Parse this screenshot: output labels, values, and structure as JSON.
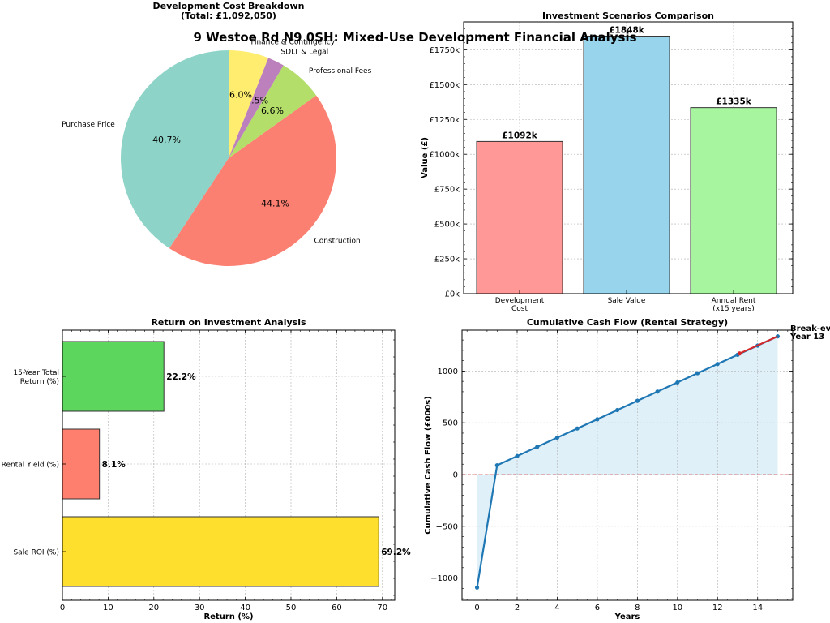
{
  "suptitle": "9 Westoe Rd N9 0SH: Mixed-Use Development Financial Analysis",
  "chart_data": [
    {
      "type": "pie",
      "title": "Development Cost Breakdown",
      "subtitle": "(Total: £1,092,050)",
      "slices": [
        {
          "label": "Purchase Price",
          "value": 40.7,
          "pct": "40.7%",
          "color": "#8dd3c7"
        },
        {
          "label": "Construction",
          "value": 44.1,
          "pct": "44.1%",
          "color": "#fb8072"
        },
        {
          "label": "Professional Fees",
          "value": 6.6,
          "pct": "6.6%",
          "color": "#b3de69"
        },
        {
          "label": "SDLT & Legal",
          "value": 2.5,
          "pct": "2.5%",
          "color": "#bc80bd"
        },
        {
          "label": "Finance & Contingency",
          "value": 6.0,
          "pct": "6.0%",
          "color": "#ffed6f"
        }
      ]
    },
    {
      "type": "bar",
      "title": "Investment Scenarios Comparison",
      "ylabel": "Value (£)",
      "categories": [
        [
          "Development",
          "Cost"
        ],
        [
          "Sale Value"
        ],
        [
          "Annual Rent",
          "(x15 years)"
        ]
      ],
      "values": [
        1092,
        1848,
        1335
      ],
      "value_labels": [
        "£1092k",
        "£1848k",
        "£1335k"
      ],
      "colors": [
        "#ff9896",
        "#98d4ec",
        "#a8f5a0"
      ],
      "ylim": [
        0,
        1950
      ],
      "yticks": [
        0,
        250,
        500,
        750,
        1000,
        1250,
        1500,
        1750
      ],
      "ytick_labels": [
        "£0k",
        "£250k",
        "£500k",
        "£750k",
        "£1000k",
        "£1250k",
        "£1500k",
        "£1750k"
      ],
      "grid": true
    },
    {
      "type": "bar",
      "orientation": "horizontal",
      "title": "Return on Investment Analysis",
      "xlabel": "Return (%)",
      "categories": [
        [
          "Sale ROI (%)"
        ],
        [
          "Rental Yield (%)"
        ],
        [
          "15-Year Total",
          "Return (%)"
        ]
      ],
      "values": [
        69.2,
        8.1,
        22.2
      ],
      "value_labels": [
        "69.2%",
        "8.1%",
        "22.2%"
      ],
      "colors": [
        "#ffdf2e",
        "#ff7f6e",
        "#5cd65c"
      ],
      "xlim": [
        0,
        72.7
      ],
      "xticks": [
        0,
        10,
        20,
        30,
        40,
        50,
        60,
        70
      ],
      "grid": true
    },
    {
      "type": "line",
      "title": "Cumulative Cash Flow (Rental Strategy)",
      "xlabel": "Years",
      "ylabel": "Cumulative Cash Flow (£000s)",
      "x": [
        0,
        1,
        2,
        3,
        4,
        5,
        6,
        7,
        8,
        9,
        10,
        11,
        12,
        13,
        14,
        15
      ],
      "y": [
        -1092,
        89,
        178,
        267,
        356,
        445,
        534,
        623,
        712,
        801,
        890,
        979,
        1068,
        1157,
        1246,
        1335
      ],
      "xlim": [
        -0.75,
        15.75
      ],
      "ylim": [
        -1215,
        1395
      ],
      "xticks": [
        0,
        2,
        4,
        6,
        8,
        10,
        12,
        14
      ],
      "yticks": [
        -1000,
        -500,
        0,
        500,
        1000
      ],
      "ytick_labels": [
        "−1000",
        "−500",
        "0",
        "500",
        "1000"
      ],
      "zero_line": true,
      "breakeven_segment": {
        "x": [
          13.1,
          15
        ],
        "y": [
          1170,
          1335
        ]
      },
      "annotation": [
        "Break-even:",
        "Year 13"
      ],
      "line_color": "#1f77b4",
      "fill_color": "#d6ebf5",
      "highlight_color": "#d62728",
      "grid": true
    }
  ]
}
